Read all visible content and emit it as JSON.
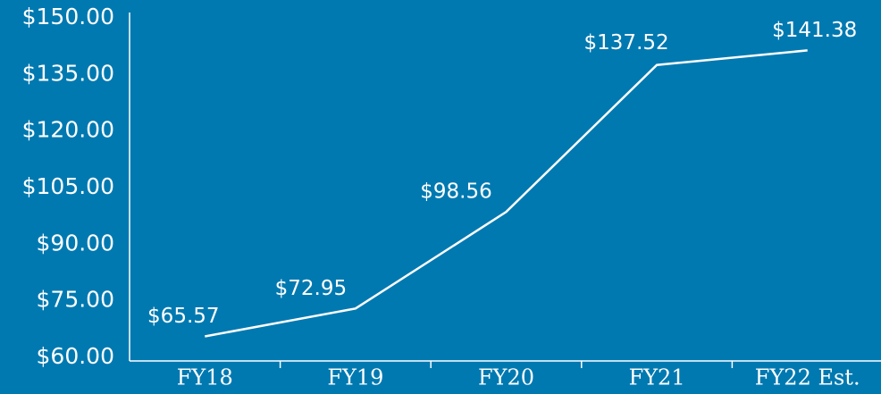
{
  "chart_data": {
    "type": "line",
    "categories": [
      "FY18",
      "FY19",
      "FY20",
      "FY21",
      "FY22 Est."
    ],
    "series": [
      {
        "color": "#ffffff",
        "values": [
          65.57,
          72.95,
          98.56,
          137.52,
          141.38
        ],
        "value_labels": [
          "$65.57",
          "$72.95",
          "$98.56",
          "$137.52",
          "$141.38"
        ]
      }
    ],
    "ylim": [
      60,
      150
    ],
    "yticks": [
      {
        "value": 60,
        "label": "$60.00"
      },
      {
        "value": 75,
        "label": "$75.00"
      },
      {
        "value": 90,
        "label": "$90.00"
      },
      {
        "value": 105,
        "label": "$105.00"
      },
      {
        "value": 120,
        "label": "$120.00"
      },
      {
        "value": 135,
        "label": "$135.00"
      },
      {
        "value": 150,
        "label": "$150.00"
      }
    ],
    "grid": false
  }
}
